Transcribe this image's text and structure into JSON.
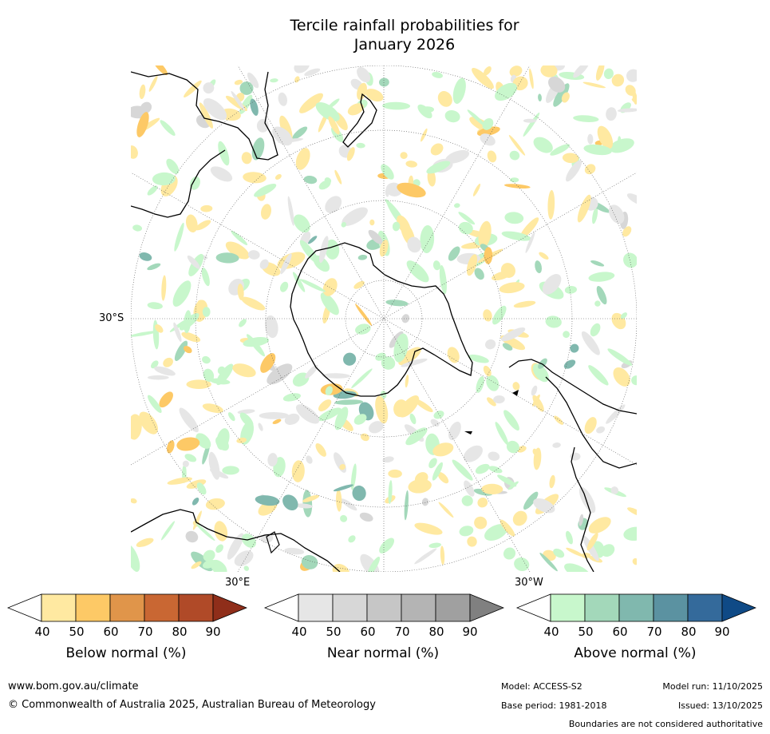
{
  "title_line1": "Tercile rainfall probabilities for",
  "title_line2": "January 2026",
  "map_labels": {
    "lat_30s": "30°S",
    "lon_30e": "30°E",
    "lon_30w": "30°W"
  },
  "legends": [
    {
      "title": "Below normal (%)",
      "ticks": [
        "40",
        "50",
        "60",
        "70",
        "80",
        "90"
      ],
      "colors": [
        "#ffffff",
        "#ffe9a1",
        "#fdc966",
        "#e0954a",
        "#c96733",
        "#b04a28",
        "#8f2e1a"
      ]
    },
    {
      "title": "Near normal (%)",
      "ticks": [
        "40",
        "50",
        "60",
        "70",
        "80",
        "90"
      ],
      "colors": [
        "#ffffff",
        "#e6e6e6",
        "#d7d7d7",
        "#c6c6c6",
        "#b4b4b4",
        "#a0a0a0",
        "#808080"
      ]
    },
    {
      "title": "Above normal (%)",
      "ticks": [
        "40",
        "50",
        "60",
        "70",
        "80",
        "90"
      ],
      "colors": [
        "#ffffff",
        "#c8f7cc",
        "#a3d8ba",
        "#80b8ae",
        "#5b92a1",
        "#346a9b",
        "#0f4a86"
      ]
    }
  ],
  "footer": {
    "website": "www.bom.gov.au/climate",
    "copyright": "© Commonwealth of Australia 2025, Australian Bureau of Meteorology",
    "model": "Model: ACCESS-S2",
    "base_period": "Base period: 1981-2018",
    "model_run": "Model run: 11/10/2025",
    "issued": "Issued: 13/10/2025",
    "disclaimer": "Boundaries are not considered authoritative"
  }
}
